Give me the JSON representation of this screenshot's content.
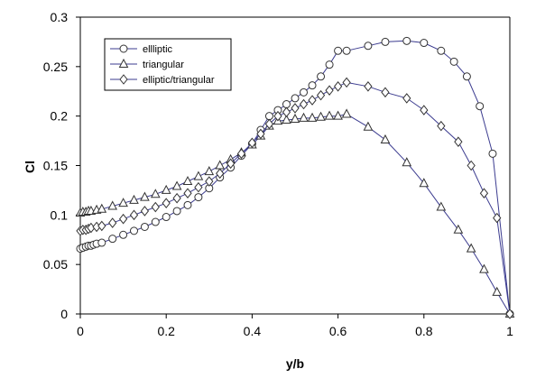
{
  "chart_data": {
    "type": "line",
    "title": "",
    "xlabel": "y/b",
    "ylabel": "Cl",
    "xlim": [
      0,
      1
    ],
    "ylim": [
      0,
      0.3
    ],
    "xticks": [
      "0",
      "0.2",
      "0.4",
      "0.6",
      "0.8",
      "1"
    ],
    "yticks": [
      "0",
      "0.05",
      "0.1",
      "0.15",
      "0.2",
      "0.25",
      "0.3"
    ],
    "grid": false,
    "legend_position": "top-left",
    "series": [
      {
        "name": "ellliptic",
        "marker": "circle",
        "x": [
          0,
          0.006,
          0.013,
          0.019,
          0.025,
          0.031,
          0.038,
          0.05,
          0.075,
          0.1,
          0.125,
          0.15,
          0.175,
          0.2,
          0.225,
          0.25,
          0.275,
          0.3,
          0.325,
          0.35,
          0.375,
          0.4,
          0.42,
          0.44,
          0.46,
          0.48,
          0.5,
          0.52,
          0.54,
          0.56,
          0.58,
          0.6,
          0.62,
          0.67,
          0.71,
          0.76,
          0.8,
          0.84,
          0.87,
          0.9,
          0.93,
          0.96,
          1.0
        ],
        "y": [
          0.066,
          0.067,
          0.068,
          0.069,
          0.069,
          0.07,
          0.071,
          0.072,
          0.076,
          0.08,
          0.084,
          0.088,
          0.093,
          0.098,
          0.104,
          0.11,
          0.118,
          0.127,
          0.138,
          0.148,
          0.16,
          0.172,
          0.186,
          0.2,
          0.206,
          0.212,
          0.218,
          0.224,
          0.231,
          0.24,
          0.252,
          0.266,
          0.266,
          0.271,
          0.275,
          0.276,
          0.274,
          0.266,
          0.255,
          0.24,
          0.21,
          0.162,
          0.0
        ]
      },
      {
        "name": "triangular",
        "marker": "triangle",
        "x": [
          0,
          0.006,
          0.013,
          0.019,
          0.025,
          0.038,
          0.05,
          0.075,
          0.1,
          0.125,
          0.15,
          0.175,
          0.2,
          0.225,
          0.25,
          0.275,
          0.3,
          0.325,
          0.35,
          0.375,
          0.4,
          0.42,
          0.44,
          0.46,
          0.48,
          0.5,
          0.52,
          0.54,
          0.56,
          0.58,
          0.6,
          0.62,
          0.67,
          0.71,
          0.76,
          0.8,
          0.84,
          0.88,
          0.91,
          0.94,
          0.97,
          1.0
        ],
        "y": [
          0.102,
          0.103,
          0.103,
          0.104,
          0.104,
          0.105,
          0.106,
          0.109,
          0.112,
          0.115,
          0.118,
          0.121,
          0.125,
          0.129,
          0.134,
          0.139,
          0.144,
          0.15,
          0.156,
          0.163,
          0.171,
          0.18,
          0.19,
          0.195,
          0.196,
          0.197,
          0.198,
          0.198,
          0.199,
          0.2,
          0.2,
          0.202,
          0.189,
          0.176,
          0.153,
          0.132,
          0.108,
          0.085,
          0.066,
          0.045,
          0.022,
          0.0
        ]
      },
      {
        "name": "elliptic/triangular",
        "marker": "diamond",
        "x": [
          0,
          0.006,
          0.013,
          0.019,
          0.025,
          0.038,
          0.05,
          0.075,
          0.1,
          0.125,
          0.15,
          0.175,
          0.2,
          0.225,
          0.25,
          0.275,
          0.3,
          0.325,
          0.35,
          0.375,
          0.4,
          0.42,
          0.44,
          0.46,
          0.48,
          0.5,
          0.52,
          0.54,
          0.56,
          0.58,
          0.6,
          0.62,
          0.67,
          0.71,
          0.76,
          0.8,
          0.84,
          0.88,
          0.91,
          0.94,
          0.97,
          1.0
        ],
        "y": [
          0.084,
          0.085,
          0.085,
          0.086,
          0.087,
          0.088,
          0.089,
          0.092,
          0.096,
          0.1,
          0.104,
          0.108,
          0.112,
          0.117,
          0.122,
          0.128,
          0.134,
          0.142,
          0.152,
          0.162,
          0.173,
          0.182,
          0.192,
          0.2,
          0.204,
          0.208,
          0.212,
          0.216,
          0.221,
          0.226,
          0.23,
          0.234,
          0.23,
          0.224,
          0.218,
          0.206,
          0.19,
          0.174,
          0.15,
          0.122,
          0.097,
          0.0
        ]
      }
    ]
  },
  "colors": {
    "axis": "#000000",
    "line": "#3b3b8f",
    "marker_stroke": "#333333",
    "marker_fill": "#ffffff",
    "legend_border": "#000000"
  }
}
